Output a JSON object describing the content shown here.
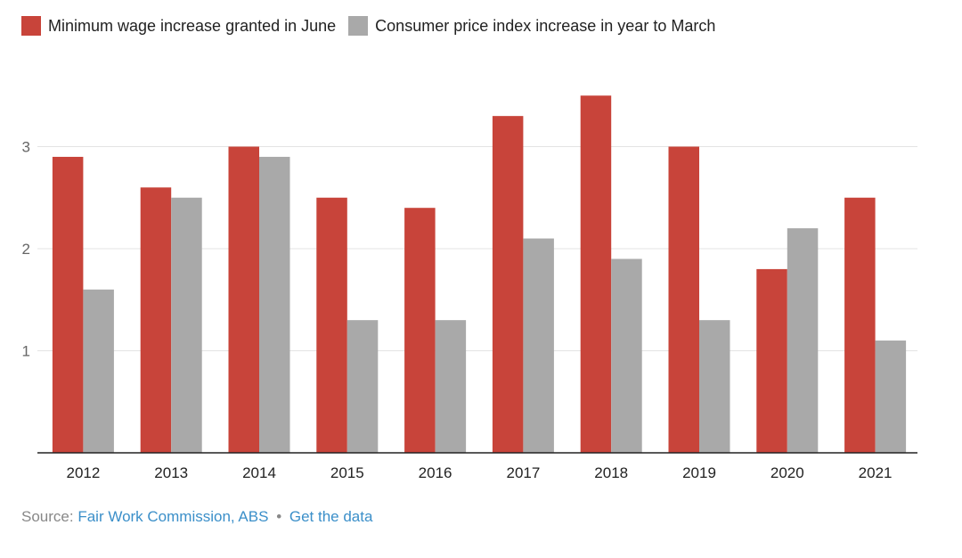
{
  "colors": {
    "wage": "#c8443a",
    "cpi": "#a9a9a9",
    "grid": "#e3e3e3",
    "axis": "#222222",
    "link": "#3b8fc9"
  },
  "source": {
    "prefix": "Source:",
    "link1": "Fair Work Commission, ABS",
    "separator": "•",
    "link2": "Get the data"
  },
  "chart_data": {
    "type": "bar",
    "categories": [
      "2012",
      "2013",
      "2014",
      "2015",
      "2016",
      "2017",
      "2018",
      "2019",
      "2020",
      "2021"
    ],
    "series": [
      {
        "name": "Minimum wage increase granted in June",
        "color": "#c8443a",
        "values": [
          2.9,
          2.6,
          3.0,
          2.5,
          2.4,
          3.3,
          3.5,
          3.0,
          1.8,
          2.5
        ]
      },
      {
        "name": "Consumer price index increase in year to March",
        "color": "#a9a9a9",
        "values": [
          1.6,
          2.5,
          2.9,
          1.3,
          1.3,
          2.1,
          1.9,
          1.3,
          2.2,
          1.1
        ]
      }
    ],
    "yticks": [
      1,
      2,
      3
    ],
    "ylim": [
      0,
      3.8
    ],
    "grid": true,
    "legend": "top-left"
  }
}
